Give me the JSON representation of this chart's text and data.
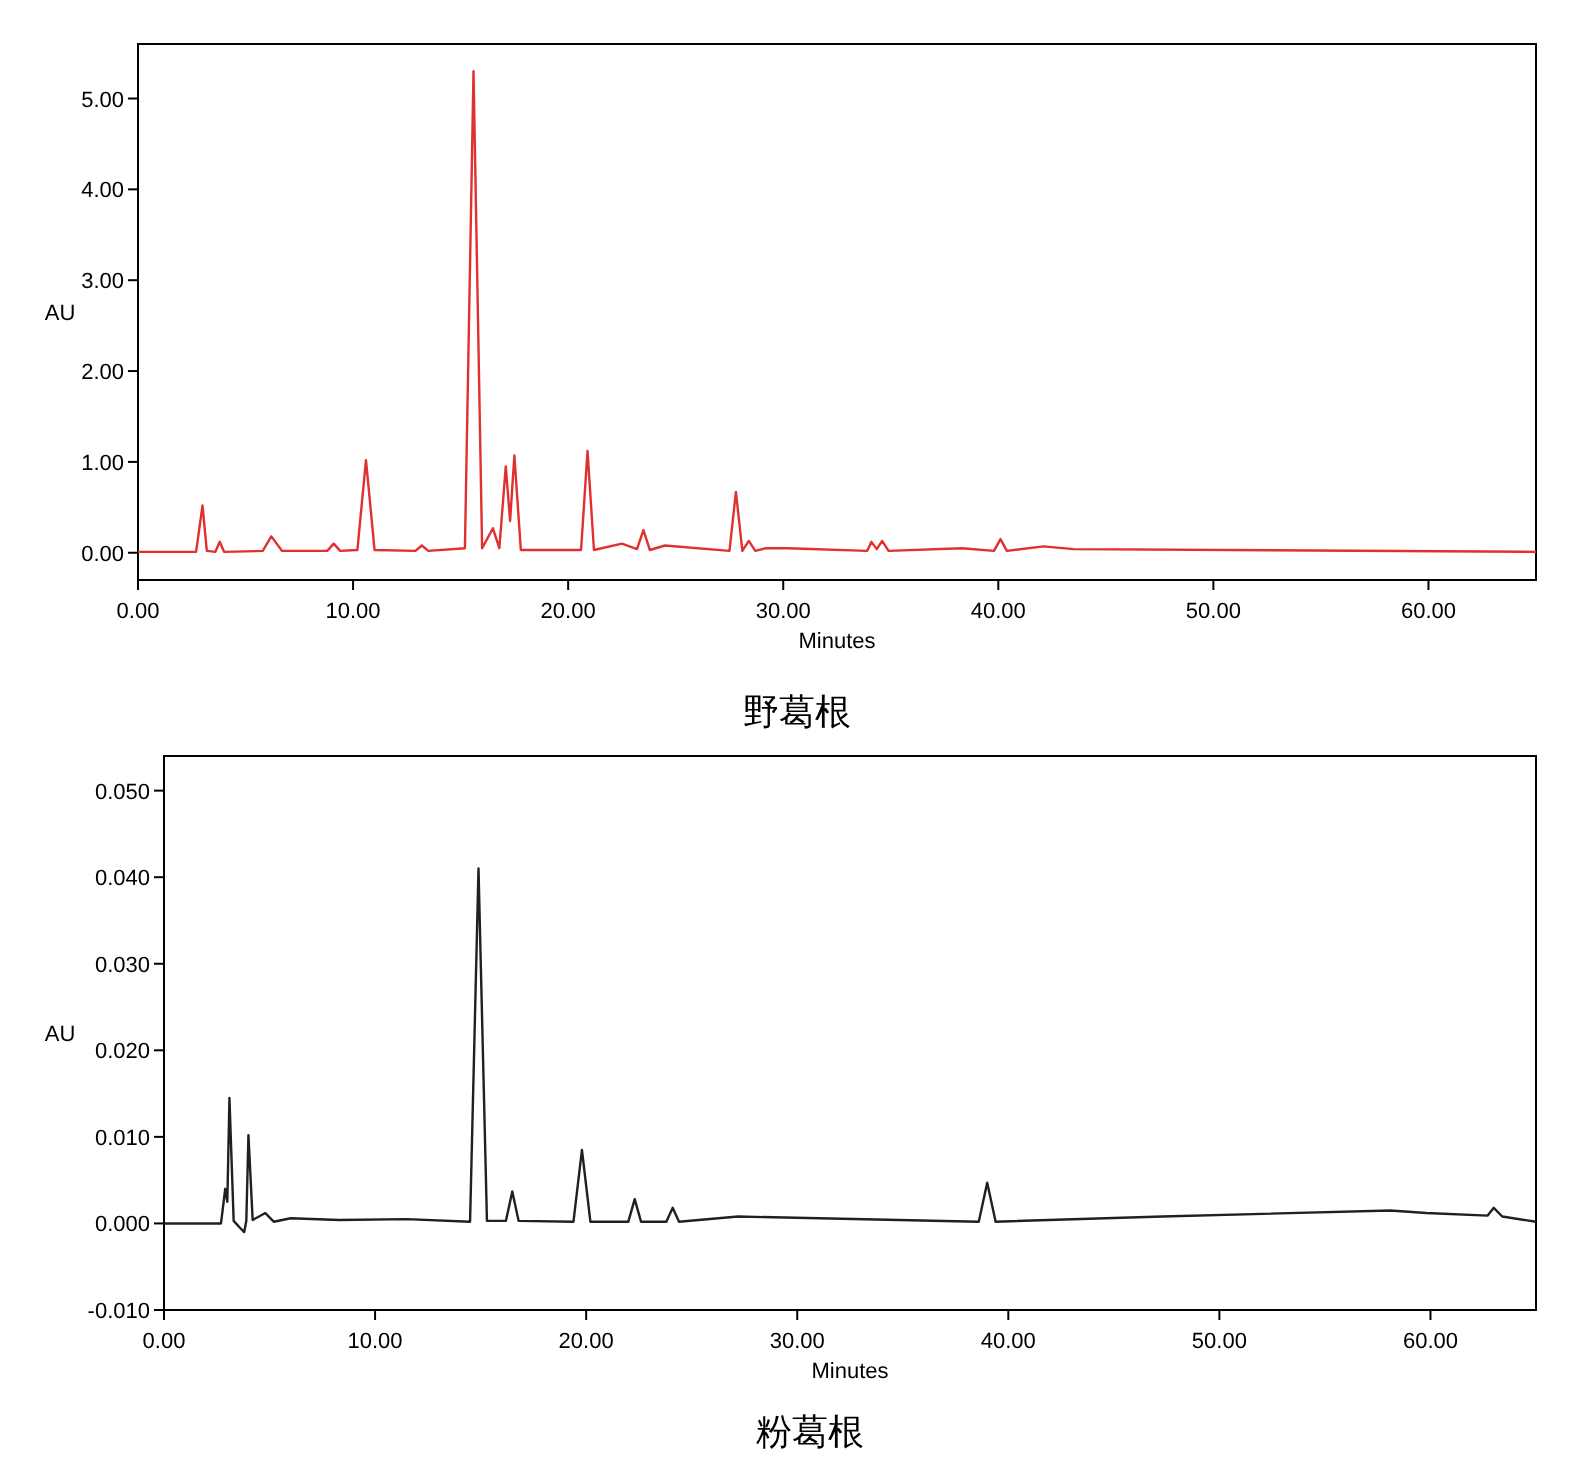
{
  "chart_data": [
    {
      "type": "line",
      "title": "野葛根",
      "xlabel": "Minutes",
      "ylabel": "AU",
      "xlim": [
        0,
        65
      ],
      "ylim": [
        -0.3,
        5.6
      ],
      "xticks": [
        {
          "value": 0,
          "label": "0.00"
        },
        {
          "value": 10,
          "label": "10.00"
        },
        {
          "value": 20,
          "label": "20.00"
        },
        {
          "value": 30,
          "label": "30.00"
        },
        {
          "value": 40,
          "label": "40.00"
        },
        {
          "value": 50,
          "label": "50.00"
        },
        {
          "value": 60,
          "label": "60.00"
        }
      ],
      "yticks": [
        {
          "value": 0,
          "label": "0.00"
        },
        {
          "value": 1,
          "label": "1.00"
        },
        {
          "value": 2,
          "label": "2.00"
        },
        {
          "value": 3,
          "label": "3.00"
        },
        {
          "value": 4,
          "label": "4.00"
        },
        {
          "value": 5,
          "label": "5.00"
        }
      ],
      "series": [
        {
          "color": "#e03030",
          "x": [
            0,
            2.7,
            3.0,
            3.2,
            3.6,
            3.8,
            4.0,
            5.8,
            6.2,
            6.7,
            8.8,
            9.1,
            9.4,
            10.2,
            10.6,
            11.0,
            12.9,
            13.2,
            13.5,
            15.2,
            15.6,
            16.0,
            16.5,
            16.8,
            17.1,
            17.3,
            17.5,
            17.8,
            20.6,
            20.9,
            21.2,
            22.5,
            23.2,
            23.5,
            23.8,
            24.5,
            27.5,
            27.8,
            28.1,
            28.4,
            28.7,
            29.2,
            30.2,
            33.9,
            34.1,
            34.35,
            34.6,
            34.9,
            38.3,
            39.8,
            40.1,
            40.4,
            42.1,
            43.5,
            65
          ],
          "values": [
            0.01,
            0.01,
            0.52,
            0.02,
            0.01,
            0.12,
            0.01,
            0.02,
            0.18,
            0.02,
            0.02,
            0.1,
            0.02,
            0.03,
            1.02,
            0.03,
            0.02,
            0.08,
            0.02,
            0.05,
            5.3,
            0.05,
            0.27,
            0.05,
            0.95,
            0.35,
            1.07,
            0.03,
            0.03,
            1.12,
            0.03,
            0.1,
            0.04,
            0.25,
            0.03,
            0.08,
            0.02,
            0.67,
            0.02,
            0.13,
            0.02,
            0.05,
            0.05,
            0.02,
            0.12,
            0.04,
            0.13,
            0.02,
            0.05,
            0.02,
            0.15,
            0.02,
            0.07,
            0.04,
            0.01
          ]
        }
      ]
    },
    {
      "type": "line",
      "title": "粉葛根",
      "xlabel": "Minutes",
      "ylabel": "AU",
      "xlim": [
        0,
        65
      ],
      "ylim": [
        -0.01,
        0.054
      ],
      "xticks": [
        {
          "value": 0,
          "label": "0.00"
        },
        {
          "value": 10,
          "label": "10.00"
        },
        {
          "value": 20,
          "label": "20.00"
        },
        {
          "value": 30,
          "label": "30.00"
        },
        {
          "value": 40,
          "label": "40.00"
        },
        {
          "value": 50,
          "label": "50.00"
        },
        {
          "value": 60,
          "label": "60.00"
        }
      ],
      "yticks": [
        {
          "value": -0.01,
          "label": "-0.010"
        },
        {
          "value": 0,
          "label": "0.000"
        },
        {
          "value": 0.01,
          "label": "0.010"
        },
        {
          "value": 0.02,
          "label": "0.020"
        },
        {
          "value": 0.03,
          "label": "0.030"
        },
        {
          "value": 0.04,
          "label": "0.040"
        },
        {
          "value": 0.05,
          "label": "0.050"
        }
      ],
      "series": [
        {
          "color": "#202020",
          "x": [
            0,
            2.7,
            2.9,
            3.0,
            3.1,
            3.3,
            3.6,
            3.8,
            3.9,
            4.0,
            4.2,
            4.8,
            5.2,
            6.0,
            8.3,
            11.5,
            14.5,
            14.9,
            15.3,
            16.2,
            16.5,
            16.8,
            19.4,
            19.8,
            20.2,
            22.0,
            22.3,
            22.6,
            23.8,
            24.1,
            24.4,
            27.2,
            38.6,
            39.0,
            39.4,
            47.3,
            58.1,
            59.8,
            62.7,
            63.0,
            63.4,
            65
          ],
          "values": [
            0,
            0,
            0.004,
            0.0025,
            0.0145,
            0.0003,
            -0.0005,
            -0.001,
            0.0003,
            0.0102,
            0.0004,
            0.0012,
            0.0002,
            0.0006,
            0.0004,
            0.0005,
            0.0002,
            0.041,
            0.0003,
            0.0003,
            0.0037,
            0.0003,
            0.0002,
            0.0085,
            0.0002,
            0.0002,
            0.0028,
            0.0002,
            0.0002,
            0.0018,
            0.0002,
            0.0008,
            0.0002,
            0.0047,
            0.0002,
            0.0008,
            0.0015,
            0.0012,
            0.0009,
            0.0018,
            0.0008,
            0.0002
          ]
        }
      ]
    }
  ]
}
